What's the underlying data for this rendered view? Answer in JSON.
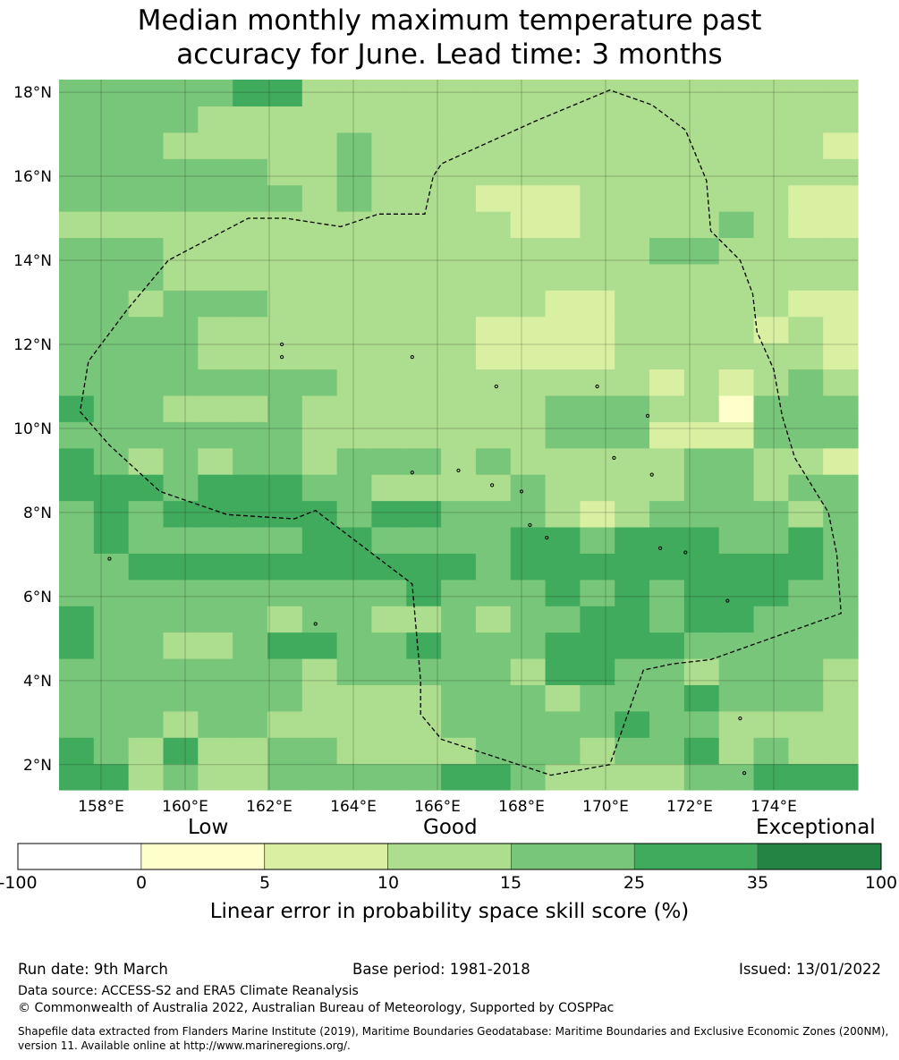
{
  "title": {
    "line1": "Median monthly maximum temperature past",
    "line2": "accuracy for June. Lead time: 3 months"
  },
  "map": {
    "lon_labels": [
      "158°E",
      "160°E",
      "162°E",
      "164°E",
      "166°E",
      "168°E",
      "170°E",
      "172°E",
      "174°E"
    ],
    "lon_values": [
      158,
      160,
      162,
      164,
      166,
      168,
      170,
      172,
      174
    ],
    "lat_labels": [
      "18°N",
      "16°N",
      "14°N",
      "12°N",
      "10°N",
      "8°N",
      "6°N",
      "4°N",
      "2°N"
    ],
    "lat_values": [
      18,
      16,
      14,
      12,
      10,
      8,
      6,
      4,
      2
    ],
    "lon_range": [
      157,
      176
    ],
    "lat_range": [
      1.4,
      18.3
    ],
    "grid_rows_bottom_to_top": [
      "55343344444554333344555",
      "54353344333344434453433",
      "44434433333444445443333",
      "44444443333444344454443",
      "44444443444443554434443",
      "54433455445444555544444",
      "54444434433434455455444",
      "44444444445444545455544",
      "44555555555545555555554",
      "45444445544445545554454",
      "45455555455444323444434",
      "55545554433334333344344",
      "54343443444343333344332",
      "44444443333333444222444",
      "54433343333333444331444",
      "44444444333333333232343",
      "44443333333322223333332",
      "44443333333322223333232",
      "44344433333333223333322",
      "44433333333333333333333",
      "44433333333333333443333",
      "33333333333332233334322",
      "44444443433322233333322",
      "44444433433333333333333",
      "44433333433333333333332",
      "44443333333333333333333",
      "44444553333333333333333"
    ],
    "palette": [
      "#ffffff",
      "#ffffcc",
      "#d9f0a3",
      "#addd8e",
      "#78c679",
      "#41ab5d",
      "#238443"
    ],
    "eez_boundary": [
      [
        157.5,
        10.4
      ],
      [
        158.2,
        9.6
      ],
      [
        159.4,
        8.5
      ],
      [
        161.0,
        7.95
      ],
      [
        162.6,
        7.85
      ],
      [
        163.1,
        8.05
      ],
      [
        165.4,
        6.3
      ],
      [
        165.6,
        4.0
      ],
      [
        165.6,
        3.2
      ],
      [
        166.1,
        2.6
      ],
      [
        168.7,
        1.75
      ],
      [
        170.1,
        2.0
      ],
      [
        170.9,
        4.25
      ],
      [
        171.6,
        4.4
      ],
      [
        172.5,
        4.5
      ],
      [
        175.6,
        5.6
      ],
      [
        175.5,
        7.0
      ],
      [
        175.3,
        8.0
      ],
      [
        174.5,
        9.3
      ],
      [
        174.2,
        10.3
      ],
      [
        174.0,
        11.4
      ],
      [
        173.6,
        12.3
      ],
      [
        173.5,
        13.2
      ],
      [
        173.2,
        14.0
      ],
      [
        172.5,
        14.7
      ],
      [
        172.4,
        15.9
      ],
      [
        171.9,
        17.1
      ],
      [
        171.1,
        17.7
      ],
      [
        170.1,
        18.05
      ],
      [
        168.3,
        17.3
      ],
      [
        166.1,
        16.3
      ],
      [
        165.9,
        16.0
      ],
      [
        165.7,
        15.1
      ],
      [
        164.6,
        15.1
      ],
      [
        163.7,
        14.8
      ],
      [
        162.4,
        15.0
      ],
      [
        161.5,
        15.0
      ],
      [
        159.6,
        14.0
      ],
      [
        158.6,
        12.8
      ],
      [
        157.7,
        11.6
      ],
      [
        157.5,
        10.4
      ]
    ],
    "islands": [
      [
        158.2,
        6.9
      ],
      [
        163.1,
        5.35
      ],
      [
        168.6,
        7.4
      ],
      [
        171.3,
        7.15
      ],
      [
        171.9,
        7.05
      ],
      [
        173.2,
        3.1
      ],
      [
        173.3,
        1.8
      ],
      [
        167.4,
        11.0
      ],
      [
        165.4,
        11.7
      ],
      [
        169.8,
        11.0
      ],
      [
        171.0,
        10.3
      ],
      [
        165.4,
        8.95
      ],
      [
        166.5,
        9.0
      ],
      [
        167.3,
        8.65
      ],
      [
        168.0,
        8.5
      ],
      [
        168.2,
        7.7
      ],
      [
        172.9,
        5.9
      ],
      [
        170.2,
        9.3
      ],
      [
        171.1,
        8.9
      ],
      [
        162.3,
        12.0
      ],
      [
        162.3,
        11.7
      ]
    ]
  },
  "colorbar": {
    "categories": [
      "Low",
      "Good",
      "Exceptional"
    ],
    "ticks": [
      "-100",
      "0",
      "5",
      "10",
      "15",
      "25",
      "35",
      "100"
    ],
    "colors": [
      "#ffffff",
      "#ffffcc",
      "#d9f0a3",
      "#addd8e",
      "#78c679",
      "#41ab5d",
      "#238443"
    ],
    "label": "Linear error in probability space skill score (%)"
  },
  "footer": {
    "run_date": "Run date: 9th March",
    "base_period": "Base period: 1981-2018",
    "issued": "Issued: 13/01/2022",
    "data_source": "Data source: ACCESS-S2 and ERA5 Climate Reanalysis",
    "copyright": "© Commonwealth of Australia 2022, Australian Bureau of Meteorology, Supported by COSPPac",
    "shapefile_line1": "Shapefile data extracted from Flanders Marine Institute (2019), Maritime Boundaries Geodatabase: Maritime Boundaries and Exclusive Economic Zones (200NM),",
    "shapefile_line2": "version 11. Available online at http://www.marineregions.org/."
  }
}
